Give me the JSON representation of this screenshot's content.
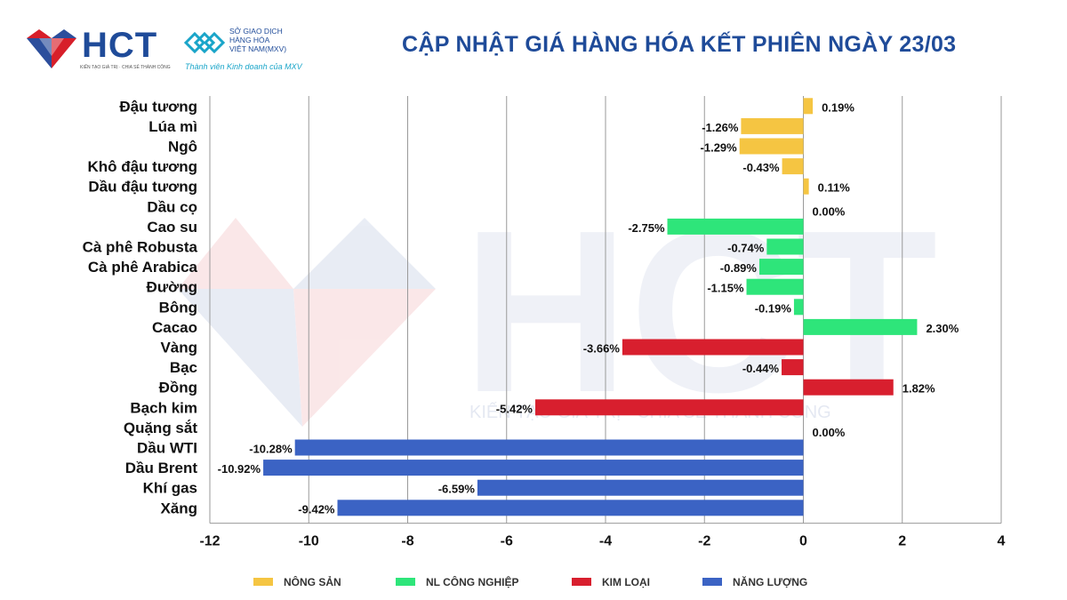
{
  "header": {
    "logo_hct_text": "HCT",
    "logo_hct_subtitle": "KIẾN TẠO GIÁ TRỊ · CHIA SẺ THÀNH CÔNG",
    "logo_mxv_line1": "SỞ GIAO DỊCH",
    "logo_mxv_line2": "HÀNG HÓA",
    "logo_mxv_line3": "VIỆT NAM(MXV)",
    "logo_mxv_tagline": "Thành viên Kinh doanh của MXV",
    "title": "CẬP NHẬT GIÁ HÀNG HÓA KẾT PHIÊN NGÀY 23/03"
  },
  "watermark": {
    "text": "HCT",
    "slogan": "KIẾN TẠO GIÁ TRỊ - CHIA SẺ THÀNH CÔNG"
  },
  "chart_data": {
    "type": "bar",
    "orientation": "horizontal",
    "title": "CẬP NHẬT GIÁ HÀNG HÓA KẾT PHIÊN NGÀY 23/03",
    "xlabel": "",
    "ylabel": "",
    "xlim": [
      -12,
      4
    ],
    "xticks": [
      -12,
      -10,
      -8,
      -6,
      -4,
      -2,
      0,
      2,
      4
    ],
    "grid": "vertical",
    "legend_position": "bottom",
    "categories": [
      "Đậu tương",
      "Lúa mì",
      "Ngô",
      "Khô đậu tương",
      "Dầu đậu tương",
      "Dầu cọ",
      "Cao su",
      "Cà phê Robusta",
      "Cà phê Arabica",
      "Đường",
      "Bông",
      "Cacao",
      "Vàng",
      "Bạc",
      "Đồng",
      "Bạch kim",
      "Quặng sắt",
      "Dầu WTI",
      "Dầu Brent",
      "Khí gas",
      "Xăng"
    ],
    "values": [
      0.19,
      -1.26,
      -1.29,
      -0.43,
      0.11,
      0.0,
      -2.75,
      -0.74,
      -0.89,
      -1.15,
      -0.19,
      2.3,
      -3.66,
      -0.44,
      1.82,
      -5.42,
      0.0,
      -10.28,
      -10.92,
      -6.59,
      -9.42
    ],
    "value_labels": [
      "0.19%",
      "-1.26%",
      "-1.29%",
      "-0.43%",
      "0.11%",
      "0.00%",
      "-2.75%",
      "-0.74%",
      "-0.89%",
      "-1.15%",
      "-0.19%",
      "2.30%",
      "-3.66%",
      "-0.44%",
      "1.82%",
      "-5.42%",
      "0.00%",
      "-10.28%",
      "-10.92%",
      "-6.59%",
      "-9.42%"
    ],
    "groups": [
      0,
      0,
      0,
      0,
      0,
      0,
      1,
      1,
      1,
      1,
      1,
      1,
      2,
      2,
      2,
      2,
      2,
      3,
      3,
      3,
      3
    ],
    "series": [
      {
        "name": "NÔNG SẢN",
        "color": "#f5c542"
      },
      {
        "name": "NL CÔNG NGHIỆP",
        "color": "#2ee57a"
      },
      {
        "name": "KIM LOẠI",
        "color": "#d81f2e"
      },
      {
        "name": "NĂNG LƯỢNG",
        "color": "#3b63c4"
      }
    ]
  }
}
